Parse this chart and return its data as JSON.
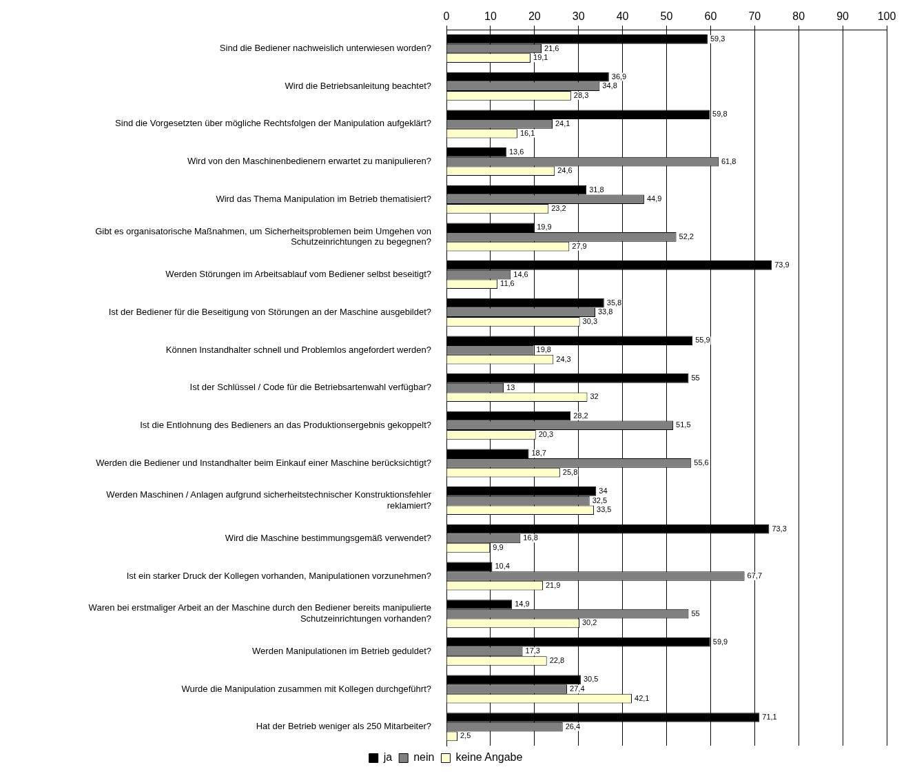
{
  "chart_data": {
    "type": "bar",
    "orientation": "horizontal",
    "categories": [
      "Sind die Bediener nachweislich unterwiesen worden?",
      "Wird die Betriebsanleitung beachtet?",
      "Sind die Vorgesetzten über mögliche Rechtsfolgen der Manipulation aufgeklärt?",
      "Wird von den Maschinenbedienern erwartet zu manipulieren?",
      "Wird das Thema Manipulation im Betrieb thematisiert?",
      "Gibt es organisatorische Maßnahmen, um Sicherheitsproblemen beim Umgehen von Schutzeinrichtungen zu begegnen?",
      "Werden Störungen im Arbeitsablauf vom Bediener selbst beseitigt?",
      "Ist der Bediener für die Beseitigung von Störungen an der Maschine ausgebildet?",
      "Können Instandhalter schnell und Problemlos angefordert werden?",
      "Ist der Schlüssel / Code für die Betriebsartenwahl verfügbar?",
      "Ist die Entlohnung des Bedieners an das Produktionsergebnis gekoppelt?",
      "Werden die Bediener und Instandhalter beim Einkauf einer Maschine berücksichtigt?",
      "Werden Maschinen / Anlagen aufgrund sicherheitstechnischer Konstruktionsfehler reklamiert?",
      "Wird die Maschine bestimmungsgemäß verwendet?",
      "Ist ein starker Druck der Kollegen vorhanden, Manipulationen vorzunehmen?",
      "Waren bei erstmaliger Arbeit an der Maschine durch den Bediener bereits manipulierte Schutzeinrichtungen vorhanden?",
      "Werden Manipulationen im Betrieb geduldet?",
      "Wurde die Manipulation zusammen mit Kollegen durchgeführt?",
      "Hat der Betrieb weniger als 250 Mitarbeiter?"
    ],
    "series": [
      {
        "name": "ja",
        "color": "#000000",
        "values": [
          59.3,
          36.9,
          59.8,
          13.6,
          31.8,
          19.9,
          73.9,
          35.8,
          55.9,
          55,
          28.2,
          18.7,
          34,
          73.3,
          10.4,
          14.9,
          59.9,
          30.5,
          71.1
        ],
        "value_labels": [
          "59,3",
          "36,9",
          "59,8",
          "13,6",
          "31,8",
          "19,9",
          "73,9",
          "35,8",
          "55,9",
          "55",
          "28,2",
          "18,7",
          "34",
          "73,3",
          "10,4",
          "14,9",
          "59,9",
          "30,5",
          "71,1"
        ]
      },
      {
        "name": "nein",
        "color": "#808080",
        "values": [
          21.6,
          34.8,
          24.1,
          61.8,
          44.9,
          52.2,
          14.6,
          33.8,
          19.8,
          13,
          51.5,
          55.6,
          32.5,
          16.8,
          67.7,
          55,
          17.3,
          27.4,
          26.4
        ],
        "value_labels": [
          "21,6",
          "34,8",
          "24,1",
          "61,8",
          "44,9",
          "52,2",
          "14,6",
          "33,8",
          "19,8",
          "13",
          "51,5",
          "55,6",
          "32,5",
          "16,8",
          "67,7",
          "55",
          "17,3",
          "27,4",
          "26,4"
        ]
      },
      {
        "name": "keine Angabe",
        "color": "#ffffcc",
        "values": [
          19.1,
          28.3,
          16.1,
          24.6,
          23.2,
          27.9,
          11.6,
          30.3,
          24.3,
          32,
          20.3,
          25.8,
          33.5,
          9.9,
          21.9,
          30.2,
          22.8,
          42.1,
          2.5
        ],
        "value_labels": [
          "19,1",
          "28,3",
          "16,1",
          "24,6",
          "23,2",
          "27,9",
          "11,6",
          "30,3",
          "24,3",
          "32",
          "20,3",
          "25,8",
          "33,5",
          "9,9",
          "21,9",
          "30,2",
          "22,8",
          "42,1",
          "2,5"
        ]
      }
    ],
    "xlim": [
      0,
      100
    ],
    "xticks": [
      0,
      10,
      20,
      30,
      40,
      50,
      60,
      70,
      80,
      90,
      100
    ],
    "grid": "x",
    "legend": "bottom"
  }
}
